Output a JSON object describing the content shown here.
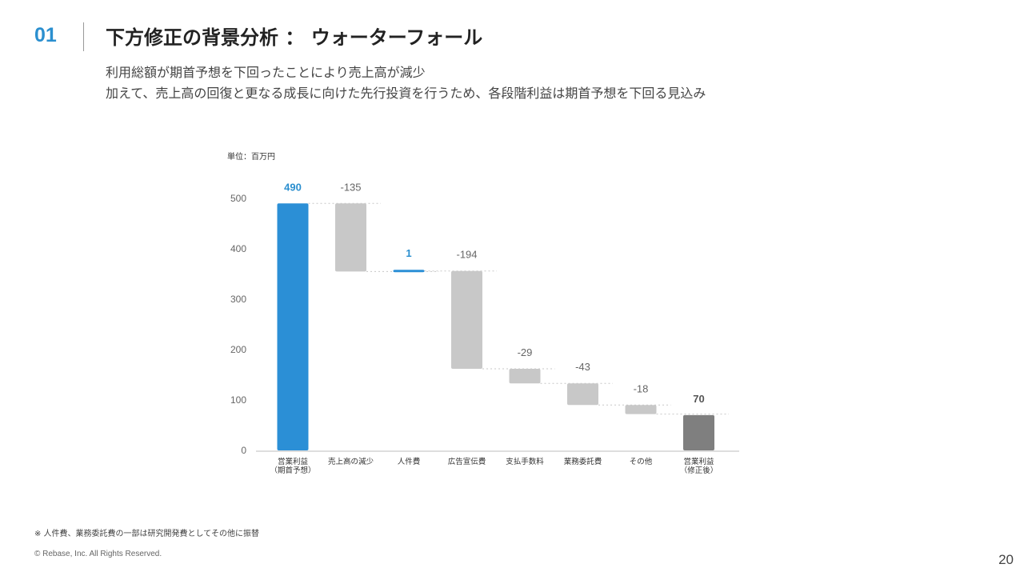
{
  "header": {
    "section_number": "01",
    "title": "下方修正の背景分析 ： ウォーターフォール"
  },
  "subtitle": {
    "line1": "利用総額が期首予想を下回ったことにより売上高が減少",
    "line2": "加えて、売上高の回復と更なる成長に向けた先行投資を行うため、各段階利益は期首予想を下回る見込み"
  },
  "chart_data": {
    "type": "waterfall",
    "unit_label": "単位：百万円",
    "ylim": [
      0,
      500
    ],
    "yticks": [
      0,
      100,
      200,
      300,
      400,
      500
    ],
    "steps": [
      {
        "label": [
          "営業利益",
          "（期首予想）"
        ],
        "value": 490,
        "label_text": "490",
        "kind": "total"
      },
      {
        "label": [
          "売上高の減少"
        ],
        "value": -135,
        "label_text": "-135",
        "kind": "decrease"
      },
      {
        "label": [
          "人件費"
        ],
        "value": 1,
        "label_text": "1",
        "kind": "increase"
      },
      {
        "label": [
          "広告宣伝費"
        ],
        "value": -194,
        "label_text": "-194",
        "kind": "decrease"
      },
      {
        "label": [
          "支払手数料"
        ],
        "value": -29,
        "label_text": "-29",
        "kind": "decrease"
      },
      {
        "label": [
          "業務委託費"
        ],
        "value": -43,
        "label_text": "-43",
        "kind": "decrease"
      },
      {
        "label": [
          "その他"
        ],
        "value": -18,
        "label_text": "-18",
        "kind": "decrease"
      },
      {
        "label": [
          "営業利益",
          "（修正後）"
        ],
        "value": 70,
        "label_text": "70",
        "kind": "final"
      }
    ],
    "colors": {
      "total": "#2b8fd6",
      "increase": "#2b8fd6",
      "decrease": "#c8c8c8",
      "final": "#7f7f7f",
      "total_label": "#2b8fcf",
      "change_label": "#666666",
      "final_label": "#555555",
      "axis": "#bdbdbd",
      "connector": "#c8c8c8"
    }
  },
  "footer": {
    "note": "※ 人件費、業務委託費の一部は研究開発費としてその他に振替",
    "copyright": "© Rebase, Inc. All Rights Reserved.",
    "page_number": "20"
  }
}
